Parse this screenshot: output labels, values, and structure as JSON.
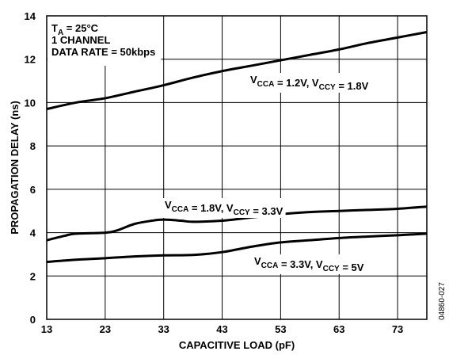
{
  "chart_data": {
    "type": "line",
    "xlabel": "CAPACITIVE LOAD (pF)",
    "ylabel": "PROPAGATION DELAY (ns)",
    "xlim": [
      13,
      78
    ],
    "ylim": [
      0,
      14
    ],
    "x_ticks": [
      13,
      23,
      33,
      43,
      53,
      63,
      73
    ],
    "y_ticks": [
      0,
      2,
      4,
      6,
      8,
      10,
      12,
      14
    ],
    "grid": true,
    "conditions": [
      {
        "main": "T",
        "sub": "A",
        "rest": " = 25°C"
      },
      {
        "main": "1 CHANNEL",
        "sub": "",
        "rest": ""
      },
      {
        "main": "DATA RATE = 50kbps",
        "sub": "",
        "rest": ""
      }
    ],
    "series": [
      {
        "name": "V_CCA = 1.2V, V_CCY = 1.8V",
        "label_parts": [
          {
            "text": "V",
            "sub": false
          },
          {
            "text": "CCA",
            "sub": true
          },
          {
            "text": " = 1.2V, V",
            "sub": false
          },
          {
            "text": "CCY",
            "sub": true
          },
          {
            "text": " = 1.8V",
            "sub": false
          }
        ],
        "x": [
          13,
          18,
          23,
          28,
          33,
          38,
          43,
          48,
          53,
          58,
          63,
          68,
          73,
          78
        ],
        "y": [
          9.7,
          10.0,
          10.2,
          10.5,
          10.8,
          11.15,
          11.45,
          11.7,
          11.95,
          12.2,
          12.45,
          12.75,
          13.0,
          13.25
        ]
      },
      {
        "name": "V_CCA = 1.8V, V_CCY = 3.3V",
        "label_parts": [
          {
            "text": "V",
            "sub": false
          },
          {
            "text": "CCA",
            "sub": true
          },
          {
            "text": " = 1.8V, V",
            "sub": false
          },
          {
            "text": "CCY",
            "sub": true
          },
          {
            "text": " = 3.3V",
            "sub": false
          }
        ],
        "x": [
          13,
          16,
          18,
          23,
          25,
          28,
          31,
          33,
          36,
          38,
          43,
          48,
          53,
          58,
          63,
          68,
          73,
          78
        ],
        "y": [
          3.65,
          3.85,
          3.95,
          4.0,
          4.1,
          4.4,
          4.55,
          4.6,
          4.55,
          4.5,
          4.55,
          4.7,
          4.85,
          4.95,
          5.0,
          5.05,
          5.1,
          5.2
        ]
      },
      {
        "name": "V_CCA = 3.3V, V_CCY = 5V",
        "label_parts": [
          {
            "text": "V",
            "sub": false
          },
          {
            "text": "CCA",
            "sub": true
          },
          {
            "text": " = 3.3V, V",
            "sub": false
          },
          {
            "text": "CCY",
            "sub": true
          },
          {
            "text": " = 5V",
            "sub": false
          }
        ],
        "x": [
          13,
          18,
          23,
          28,
          33,
          38,
          43,
          48,
          53,
          58,
          63,
          68,
          73,
          78
        ],
        "y": [
          2.65,
          2.75,
          2.82,
          2.9,
          2.95,
          2.97,
          3.1,
          3.35,
          3.55,
          3.65,
          3.75,
          3.82,
          3.88,
          3.95
        ]
      }
    ]
  },
  "figure_id": "04860-027"
}
